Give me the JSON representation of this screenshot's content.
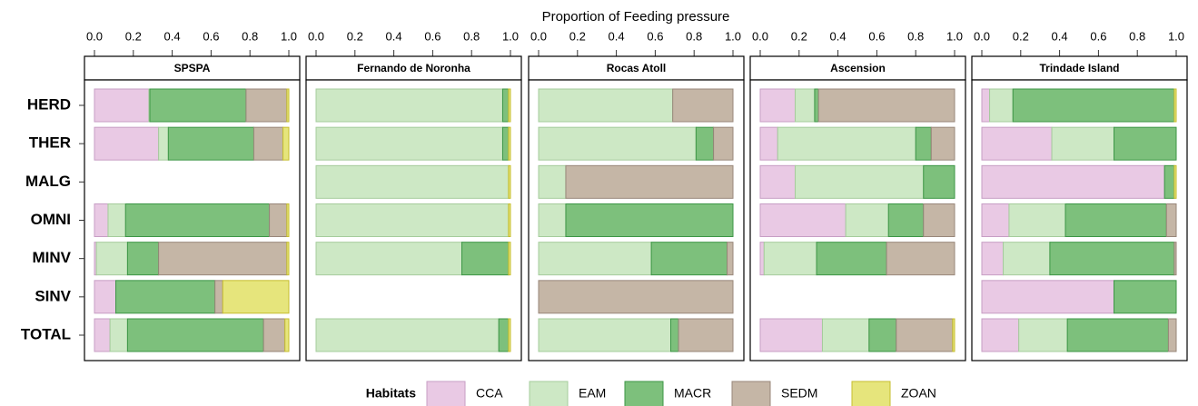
{
  "chart_data": {
    "type": "bar",
    "orientation": "horizontal",
    "stacked": true,
    "xlabel": "Proportion of Feeding pressure",
    "legend_title": "Habitats",
    "xlim": [
      0,
      1
    ],
    "xticks": [
      {
        "value": 0,
        "label": "0.0"
      },
      {
        "value": 0.2,
        "label": "0.2"
      },
      {
        "value": 0.4,
        "label": "0.4"
      },
      {
        "value": 0.6,
        "label": "0.6"
      },
      {
        "value": 0.8,
        "label": "0.8"
      },
      {
        "value": 1,
        "label": "1.0"
      }
    ],
    "categories": [
      "HERD",
      "THER",
      "MALG",
      "OMNI",
      "MINV",
      "SINV",
      "TOTAL"
    ],
    "series": [
      {
        "name": "CCA",
        "color": "#e9c9e4",
        "edgecolor": "#c79ec4"
      },
      {
        "name": "EAM",
        "color": "#cde8c5",
        "edgecolor": "#a5cc9c"
      },
      {
        "name": "MACR",
        "color": "#7dc07c",
        "edgecolor": "#3d9646"
      },
      {
        "name": "SEDM",
        "color": "#c5b6a6",
        "edgecolor": "#98877a"
      },
      {
        "name": "ZOAN",
        "color": "#e6e57c",
        "edgecolor": "#c6bd2e"
      }
    ],
    "panels": [
      {
        "title": "SPSPA",
        "values": [
          [
            0.28,
            0.33,
            null,
            0.07,
            0.01,
            0.11,
            0.08
          ],
          [
            0.005,
            0.05,
            null,
            0.09,
            0.16,
            0,
            0.09
          ],
          [
            0.495,
            0.44,
            null,
            0.74,
            0.16,
            0.51,
            0.7
          ],
          [
            0.21,
            0.15,
            null,
            0.09,
            0.66,
            0.04,
            0.11
          ],
          [
            0.01,
            0.03,
            null,
            0.01,
            0.01,
            0.34,
            0.02
          ]
        ]
      },
      {
        "title": "Fernando de Noronha",
        "values": [
          [
            0,
            0,
            0,
            0,
            0,
            null,
            0
          ],
          [
            0.96,
            0.96,
            0.99,
            0.99,
            0.75,
            null,
            0.94
          ],
          [
            0.03,
            0.03,
            0,
            0,
            0.24,
            null,
            0.05
          ],
          [
            0,
            0,
            0,
            0,
            0,
            null,
            0
          ],
          [
            0.01,
            0.01,
            0.01,
            0.01,
            0.01,
            null,
            0.01
          ]
        ]
      },
      {
        "title": "Rocas Atoll",
        "values": [
          [
            0,
            0,
            0,
            0,
            0,
            0,
            0
          ],
          [
            0.69,
            0.81,
            0.14,
            0.14,
            0.58,
            0,
            0.68
          ],
          [
            0,
            0.09,
            0,
            0.86,
            0.39,
            0,
            0.04
          ],
          [
            0.31,
            0.1,
            0.86,
            0,
            0.03,
            1,
            0.28
          ],
          [
            0,
            0,
            0,
            0,
            0,
            0,
            0
          ]
        ]
      },
      {
        "title": "Ascension",
        "values": [
          [
            0.18,
            0.09,
            0.18,
            0.44,
            0.02,
            null,
            0.32
          ],
          [
            0.1,
            0.71,
            0.66,
            0.22,
            0.27,
            null,
            0.24
          ],
          [
            0.02,
            0.08,
            0.16,
            0.18,
            0.36,
            null,
            0.14
          ],
          [
            0.7,
            0.12,
            0,
            0.16,
            0.35,
            null,
            0.29
          ],
          [
            0,
            0,
            0,
            0,
            0,
            null,
            0.01
          ]
        ]
      },
      {
        "title": "Trindade Island",
        "values": [
          [
            0.04,
            0.36,
            0.94,
            0.14,
            0.11,
            0.68,
            0.19
          ],
          [
            0.12,
            0.32,
            0,
            0.29,
            0.24,
            0,
            0.25
          ],
          [
            0.83,
            0.32,
            0.05,
            0.52,
            0.64,
            0.32,
            0.52
          ],
          [
            0,
            0,
            0,
            0.05,
            0.01,
            0,
            0.04
          ],
          [
            0.01,
            0,
            0.01,
            0,
            0,
            0,
            0
          ]
        ]
      }
    ]
  }
}
